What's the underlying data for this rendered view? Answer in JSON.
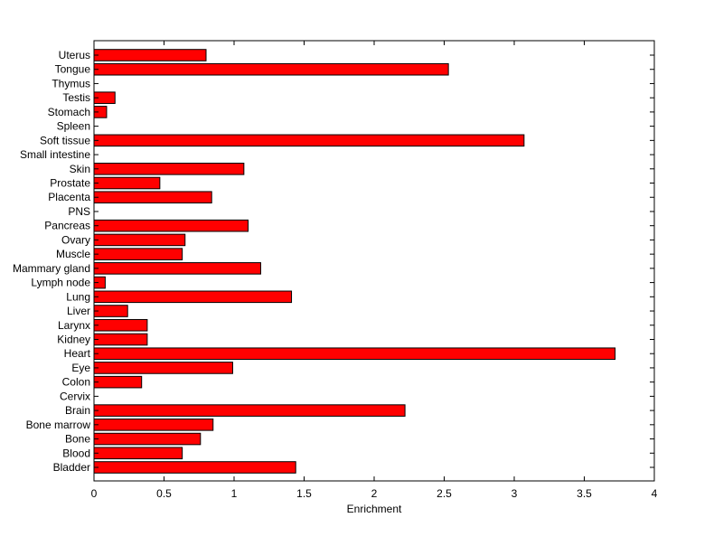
{
  "chart_data": {
    "type": "bar",
    "orientation": "horizontal",
    "categories": [
      "Uterus",
      "Tongue",
      "Thymus",
      "Testis",
      "Stomach",
      "Spleen",
      "Soft tissue",
      "Small intestine",
      "Skin",
      "Prostate",
      "Placenta",
      "PNS",
      "Pancreas",
      "Ovary",
      "Muscle",
      "Mammary gland",
      "Lymph node",
      "Lung",
      "Liver",
      "Larynx",
      "Kidney",
      "Heart",
      "Eye",
      "Colon",
      "Cervix",
      "Brain",
      "Bone marrow",
      "Bone",
      "Blood",
      "Bladder"
    ],
    "values": [
      0.8,
      2.53,
      0,
      0.15,
      0.09,
      0,
      3.07,
      0,
      1.07,
      0.47,
      0.84,
      0,
      1.1,
      0.65,
      0.63,
      1.19,
      0.08,
      1.41,
      0.24,
      0.38,
      0.38,
      3.72,
      0.99,
      0.34,
      0,
      2.22,
      0.85,
      0.76,
      0.63,
      1.44
    ],
    "xlabel": "Enrichment",
    "ylabel": "",
    "title": "",
    "xlim": [
      0,
      4
    ],
    "xticks": [
      "0",
      "0.5",
      "1",
      "1.5",
      "2",
      "2.5",
      "3",
      "3.5",
      "4"
    ],
    "bar_color": "#ff0000",
    "grid": false
  }
}
